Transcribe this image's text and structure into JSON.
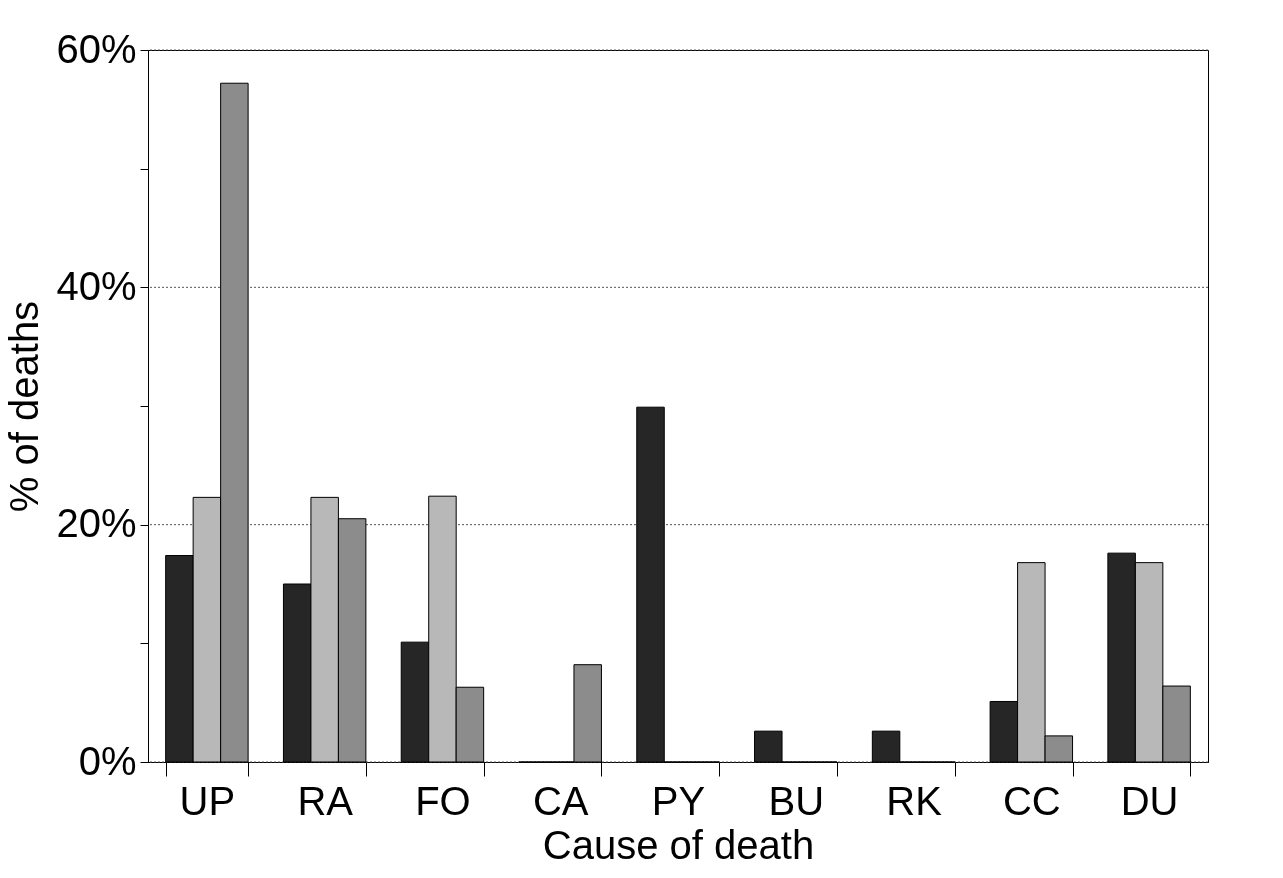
{
  "chart_data": {
    "type": "bar",
    "xlabel": "Cause of death",
    "ylabel": "% of deaths",
    "categories": [
      "UP",
      "RA",
      "FO",
      "CA",
      "PY",
      "BU",
      "RK",
      "CC",
      "DU"
    ],
    "series": [
      {
        "color": "#262626",
        "values": [
          17.4,
          15.0,
          10.1,
          0,
          29.9,
          2.6,
          2.6,
          5.1,
          17.6
        ]
      },
      {
        "color": "#b8b8b8",
        "values": [
          22.3,
          22.3,
          22.4,
          0,
          0,
          0,
          0,
          16.8,
          16.8
        ]
      },
      {
        "color": "#8c8c8c",
        "values": [
          57.2,
          20.5,
          6.3,
          8.2,
          0,
          0,
          0,
          2.2,
          6.4
        ]
      }
    ],
    "ylim": [
      0,
      60
    ],
    "yticks": [
      {
        "value": 0,
        "label": "0%"
      },
      {
        "value": 10,
        "label": null
      },
      {
        "value": 20,
        "label": "20%"
      },
      {
        "value": 30,
        "label": null
      },
      {
        "value": 40,
        "label": "40%"
      },
      {
        "value": 50,
        "label": null
      },
      {
        "value": 60,
        "label": "60%"
      }
    ],
    "grid": "y",
    "legend": false
  }
}
